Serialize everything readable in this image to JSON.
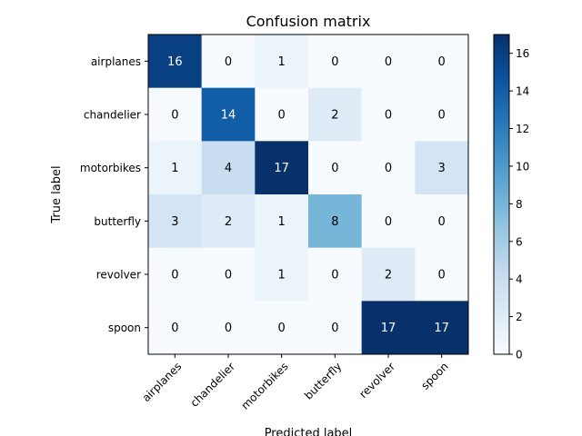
{
  "chart_data": {
    "type": "heatmap",
    "title": "Confusion matrix",
    "xlabel": "Predicted label",
    "ylabel": "True label",
    "x_categories": [
      "airplanes",
      "chandelier",
      "motorbikes",
      "butterfly",
      "revolver",
      "spoon"
    ],
    "y_categories": [
      "airplanes",
      "chandelier",
      "motorbikes",
      "butterfly",
      "revolver",
      "spoon"
    ],
    "values": [
      [
        16,
        0,
        1,
        0,
        0,
        0
      ],
      [
        0,
        14,
        0,
        2,
        0,
        0
      ],
      [
        1,
        4,
        17,
        0,
        0,
        3
      ],
      [
        3,
        2,
        1,
        8,
        0,
        0
      ],
      [
        0,
        0,
        1,
        0,
        2,
        0
      ],
      [
        0,
        0,
        0,
        0,
        17,
        17
      ]
    ],
    "colormap": "Blues",
    "vmin": 0,
    "vmax": 17,
    "colorbar_ticks": [
      0,
      2,
      4,
      6,
      8,
      10,
      12,
      14,
      16
    ],
    "text_color_dark_cells": "#ffffff",
    "text_color_light_cells": "#000000"
  }
}
